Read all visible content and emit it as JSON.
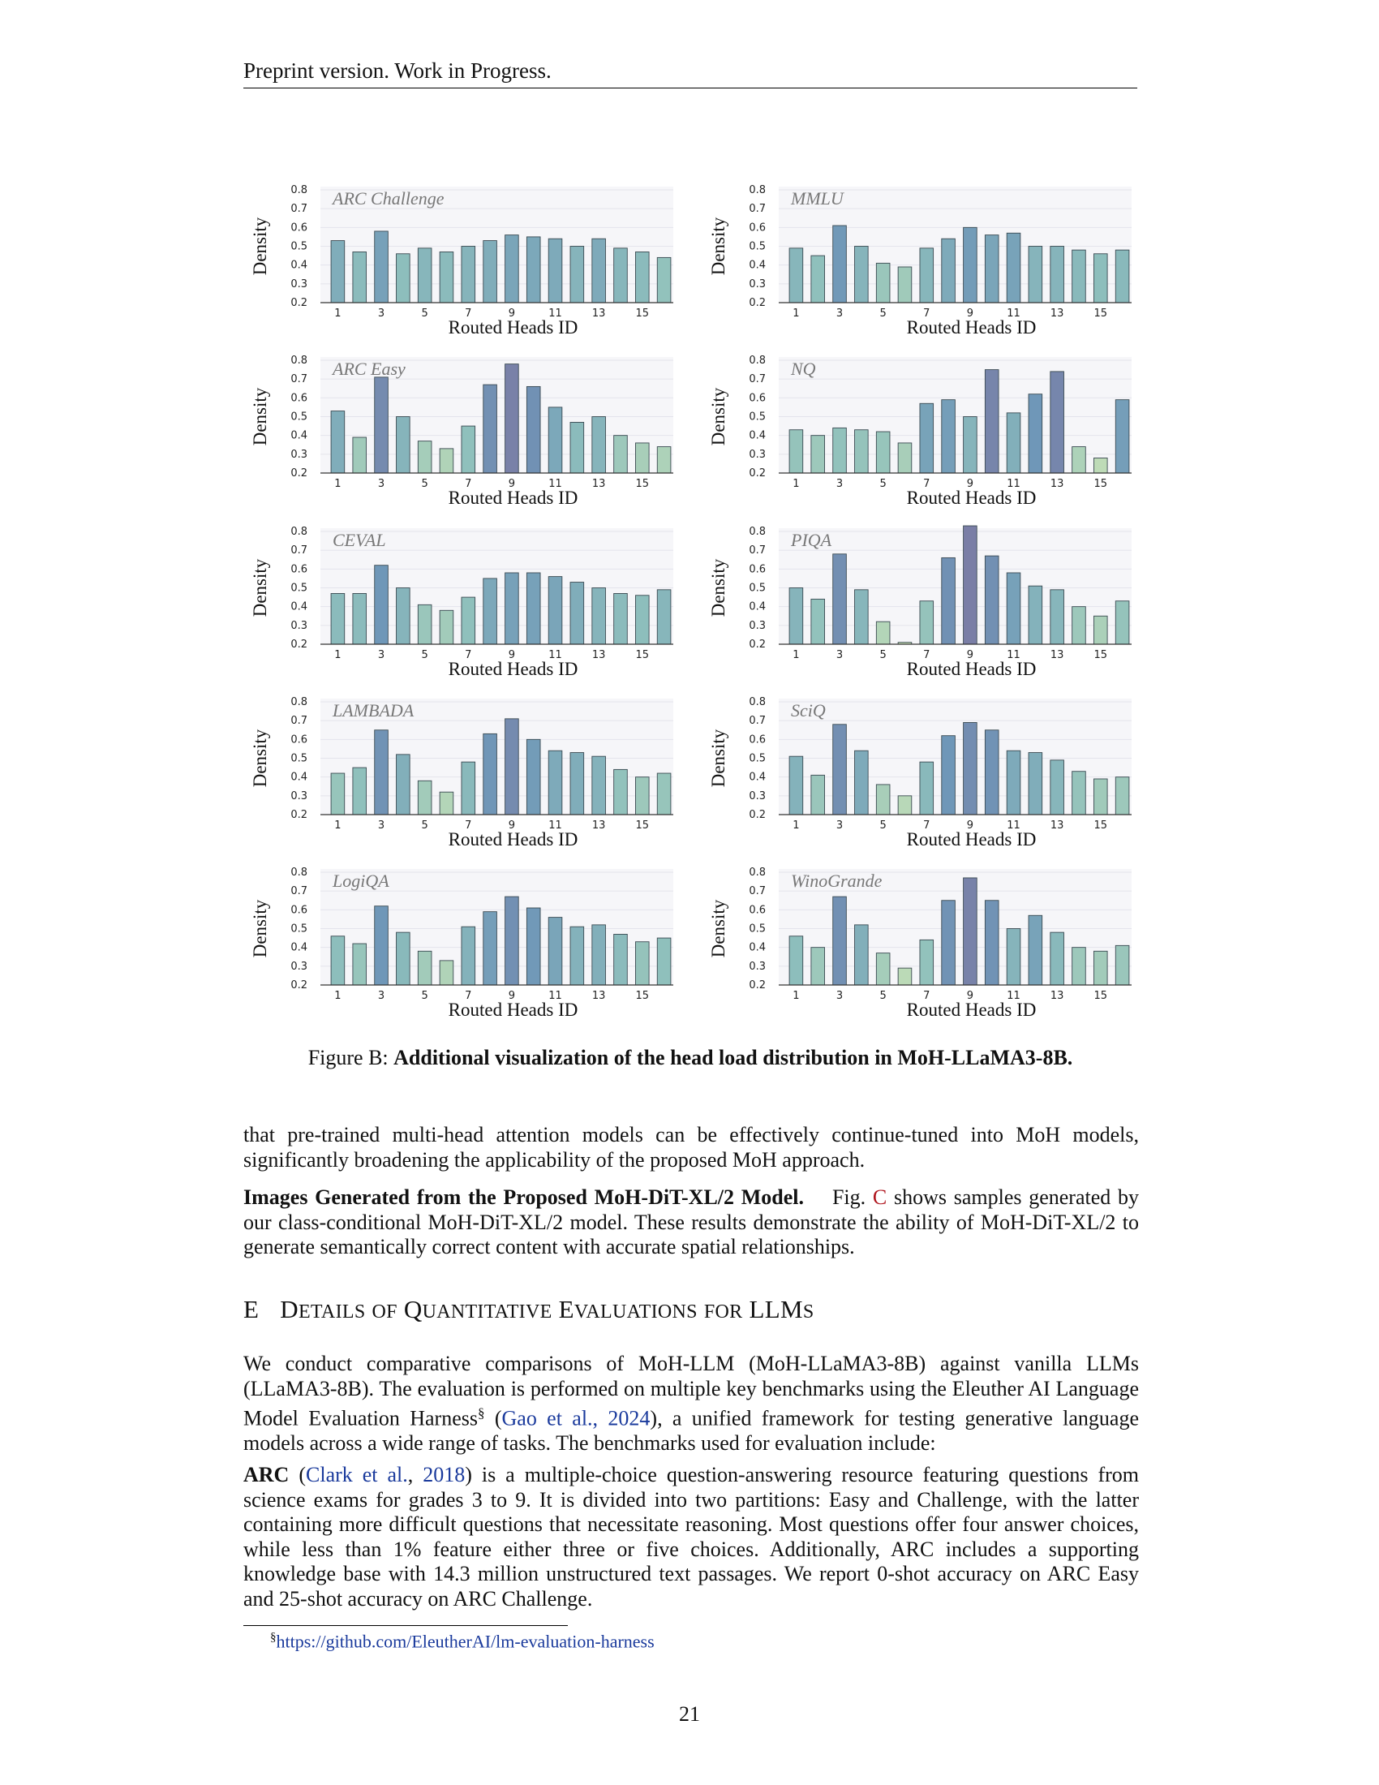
{
  "header": {
    "text": "Preprint version. Work in Progress."
  },
  "chart_data": [
    {
      "type": "bar",
      "title": "ARC Challenge",
      "xlabel": "Routed Heads ID",
      "ylabel": "Density",
      "ylim": [
        0.2,
        0.8
      ],
      "categories": [
        1,
        2,
        3,
        4,
        5,
        6,
        7,
        8,
        9,
        10,
        11,
        12,
        13,
        14,
        15,
        16
      ],
      "values": [
        0.53,
        0.47,
        0.58,
        0.46,
        0.49,
        0.47,
        0.5,
        0.53,
        0.56,
        0.55,
        0.54,
        0.5,
        0.54,
        0.49,
        0.47,
        0.44
      ]
    },
    {
      "type": "bar",
      "title": "MMLU",
      "xlabel": "Routed Heads ID",
      "ylabel": "Density",
      "ylim": [
        0.2,
        0.8
      ],
      "categories": [
        1,
        2,
        3,
        4,
        5,
        6,
        7,
        8,
        9,
        10,
        11,
        12,
        13,
        14,
        15,
        16
      ],
      "values": [
        0.49,
        0.45,
        0.61,
        0.5,
        0.41,
        0.39,
        0.49,
        0.54,
        0.6,
        0.56,
        0.57,
        0.5,
        0.5,
        0.48,
        0.46,
        0.48
      ]
    },
    {
      "type": "bar",
      "title": "ARC Easy",
      "xlabel": "Routed Heads ID",
      "ylabel": "Density",
      "ylim": [
        0.2,
        0.8
      ],
      "categories": [
        1,
        2,
        3,
        4,
        5,
        6,
        7,
        8,
        9,
        10,
        11,
        12,
        13,
        14,
        15,
        16
      ],
      "values": [
        0.53,
        0.39,
        0.71,
        0.5,
        0.37,
        0.33,
        0.45,
        0.67,
        0.78,
        0.66,
        0.55,
        0.47,
        0.5,
        0.4,
        0.36,
        0.34
      ]
    },
    {
      "type": "bar",
      "title": "NQ",
      "xlabel": "Routed Heads ID",
      "ylabel": "Density",
      "ylim": [
        0.2,
        0.8
      ],
      "categories": [
        1,
        2,
        3,
        4,
        5,
        6,
        7,
        8,
        9,
        10,
        11,
        12,
        13,
        14,
        15,
        16
      ],
      "values": [
        0.43,
        0.4,
        0.44,
        0.43,
        0.42,
        0.36,
        0.57,
        0.59,
        0.5,
        0.75,
        0.52,
        0.62,
        0.74,
        0.34,
        0.28,
        0.59
      ]
    },
    {
      "type": "bar",
      "title": "CEVAL",
      "xlabel": "Routed Heads ID",
      "ylabel": "Density",
      "ylim": [
        0.2,
        0.8
      ],
      "categories": [
        1,
        2,
        3,
        4,
        5,
        6,
        7,
        8,
        9,
        10,
        11,
        12,
        13,
        14,
        15,
        16
      ],
      "values": [
        0.47,
        0.47,
        0.62,
        0.5,
        0.41,
        0.38,
        0.45,
        0.55,
        0.58,
        0.58,
        0.56,
        0.53,
        0.5,
        0.47,
        0.46,
        0.49
      ]
    },
    {
      "type": "bar",
      "title": "PIQA",
      "xlabel": "Routed Heads ID",
      "ylabel": "Density",
      "ylim": [
        0.2,
        0.8
      ],
      "categories": [
        1,
        2,
        3,
        4,
        5,
        6,
        7,
        8,
        9,
        10,
        11,
        12,
        13,
        14,
        15,
        16
      ],
      "values": [
        0.5,
        0.44,
        0.68,
        0.49,
        0.32,
        0.21,
        0.43,
        0.66,
        0.83,
        0.67,
        0.58,
        0.51,
        0.49,
        0.4,
        0.35,
        0.43
      ]
    },
    {
      "type": "bar",
      "title": "LAMBADA",
      "xlabel": "Routed Heads ID",
      "ylabel": "Density",
      "ylim": [
        0.2,
        0.8
      ],
      "categories": [
        1,
        2,
        3,
        4,
        5,
        6,
        7,
        8,
        9,
        10,
        11,
        12,
        13,
        14,
        15,
        16
      ],
      "values": [
        0.42,
        0.45,
        0.65,
        0.52,
        0.38,
        0.32,
        0.48,
        0.63,
        0.71,
        0.6,
        0.54,
        0.53,
        0.51,
        0.44,
        0.4,
        0.42
      ]
    },
    {
      "type": "bar",
      "title": "SciQ",
      "xlabel": "Routed Heads ID",
      "ylabel": "Density",
      "ylim": [
        0.2,
        0.8
      ],
      "categories": [
        1,
        2,
        3,
        4,
        5,
        6,
        7,
        8,
        9,
        10,
        11,
        12,
        13,
        14,
        15,
        16
      ],
      "values": [
        0.51,
        0.41,
        0.68,
        0.54,
        0.36,
        0.3,
        0.48,
        0.62,
        0.69,
        0.65,
        0.54,
        0.53,
        0.49,
        0.43,
        0.39,
        0.4
      ]
    },
    {
      "type": "bar",
      "title": "LogiQA",
      "xlabel": "Routed Heads ID",
      "ylabel": "Density",
      "ylim": [
        0.2,
        0.8
      ],
      "categories": [
        1,
        2,
        3,
        4,
        5,
        6,
        7,
        8,
        9,
        10,
        11,
        12,
        13,
        14,
        15,
        16
      ],
      "values": [
        0.46,
        0.42,
        0.62,
        0.48,
        0.38,
        0.33,
        0.51,
        0.59,
        0.67,
        0.61,
        0.56,
        0.51,
        0.52,
        0.47,
        0.43,
        0.45
      ]
    },
    {
      "type": "bar",
      "title": "WinoGrande",
      "xlabel": "Routed Heads ID",
      "ylabel": "Density",
      "ylim": [
        0.2,
        0.8
      ],
      "categories": [
        1,
        2,
        3,
        4,
        5,
        6,
        7,
        8,
        9,
        10,
        11,
        12,
        13,
        14,
        15,
        16
      ],
      "values": [
        0.46,
        0.4,
        0.67,
        0.52,
        0.37,
        0.29,
        0.44,
        0.65,
        0.77,
        0.65,
        0.5,
        0.57,
        0.48,
        0.4,
        0.38,
        0.41
      ]
    }
  ],
  "figure": {
    "label": "Figure B:",
    "caption": "Additional visualization of the head load distribution in MoH-LLaMA3-8B."
  },
  "body": {
    "para1": "that pre-trained multi-head attention models can be effectively continue-tuned into MoH models, significantly broadening the applicability of the proposed MoH approach.",
    "para2_title": "Images Generated from the Proposed MoH-DiT-XL/2 Model.",
    "para2_pre": "Fig.",
    "para2_ref": "C",
    "para2_post": "shows samples generated by our class-conditional MoH-DiT-XL/2 model. These results demonstrate the ability of MoH-DiT-XL/2 to generate semantically correct content with accurate spatial relationships.",
    "section_num": "E",
    "section_words": [
      {
        "cap": "D",
        "rest": "ETAILS",
        "small": true
      },
      {
        "cap": "",
        "rest": "OF",
        "small": true
      },
      {
        "cap": "Q",
        "rest": "UANTITATIVE",
        "small": true
      },
      {
        "cap": "E",
        "rest": "VALUATIONS",
        "small": true
      },
      {
        "cap": "",
        "rest": "FOR",
        "small": true
      },
      {
        "cap": "LLM",
        "rest": "S",
        "small": true
      }
    ],
    "para3_pre": "We conduct comparative comparisons of MoH-LLM (MoH-LLaMA3-8B) against vanilla LLMs (LLaMA3-8B). The evaluation is performed on multiple key benchmarks using the Eleuther AI Language Model Evaluation Harness",
    "para3_sup": "§",
    "para3_open": "(",
    "para3_ref": "Gao et al., 2024",
    "para3_post": "), a unified framework for testing generative language models across a wide range of tasks. The benchmarks used for evaluation include:",
    "para4_title": "ARC",
    "para4_open": "(",
    "para4_ref1": "Clark et al.",
    "para4_comma": ", ",
    "para4_ref2": "2018",
    "para4_post": ") is a multiple-choice question-answering resource featuring questions from science exams for grades 3 to 9. It is divided into two partitions: Easy and Challenge, with the latter containing more difficult questions that necessitate reasoning. Most questions offer four answer choices, while less than 1% feature either three or five choices. Additionally, ARC includes a supporting knowledge base with 14.3 million unstructured text passages. We report 0-shot accuracy on ARC Easy and 25-shot accuracy on ARC Challenge."
  },
  "footnote": {
    "mark": "§",
    "url": "https://github.com/EleutherAI/lm-evaluation-harness"
  },
  "page_number": "21",
  "colors": {
    "panel_bg": "#f6f6f9",
    "bar_low": "#c6e0b6",
    "bar_mid": "#8fc0bc",
    "bar_high": "#6f97b8",
    "bar_top": "#7a7ea6",
    "link": "#1a3a9c",
    "ref_red": "#b0171f"
  }
}
